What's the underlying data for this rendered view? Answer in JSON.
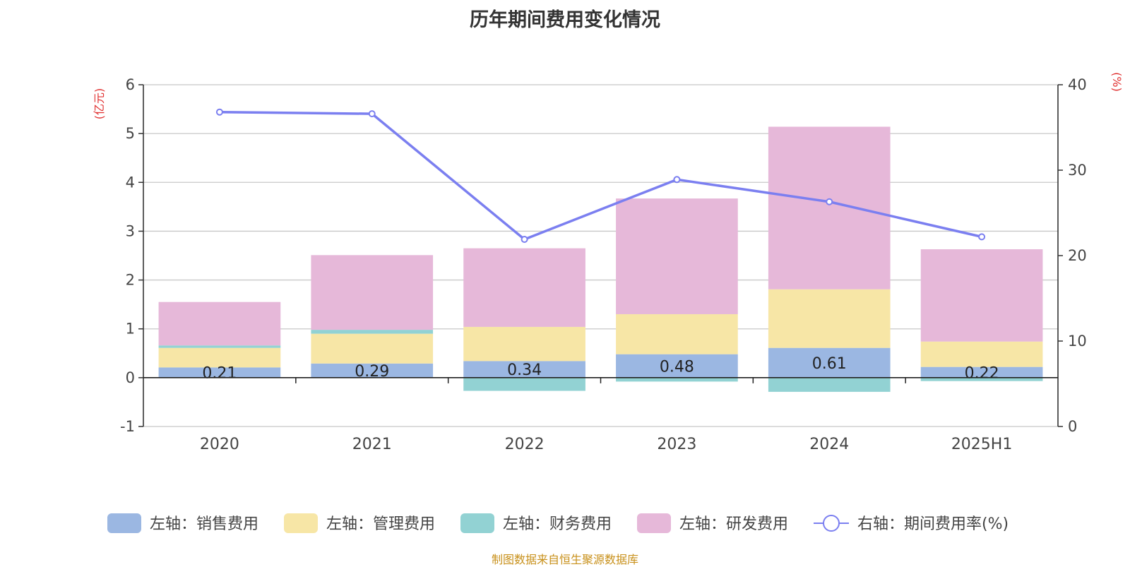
{
  "title": "历年期间费用变化情况",
  "source": "制图数据来自恒生聚源数据库",
  "left_unit": "(亿元)",
  "right_unit": "(%)",
  "colors": {
    "sales": "#9bb7e2",
    "admin": "#f7e6a6",
    "finance": "#92d2d3",
    "rd": "#e6b8d9",
    "rate": "#7b7ff0"
  },
  "chart_data": {
    "type": "bar",
    "stacked": true,
    "categories": [
      "2020",
      "2021",
      "2022",
      "2023",
      "2024",
      "2025H1"
    ],
    "y_left": {
      "label": "(亿元)",
      "ylim": [
        -1,
        6
      ],
      "ticks": [
        -1,
        0,
        1,
        2,
        3,
        4,
        5,
        6
      ]
    },
    "y_right": {
      "label": "(%)",
      "ylim": [
        0,
        40
      ],
      "ticks": [
        0,
        10,
        20,
        30,
        40
      ]
    },
    "grid": true,
    "legend_position": "bottom",
    "series": [
      {
        "name": "左轴：销售费用",
        "key": "sales",
        "axis": "left",
        "values": [
          0.21,
          0.29,
          0.34,
          0.48,
          0.61,
          0.22
        ],
        "data_labels": [
          "0.21",
          "0.29",
          "0.34",
          "0.48",
          "0.61",
          "0.22"
        ]
      },
      {
        "name": "左轴：管理费用",
        "key": "admin",
        "axis": "left",
        "values": [
          0.4,
          0.61,
          0.7,
          0.82,
          1.2,
          0.52
        ]
      },
      {
        "name": "左轴：财务费用",
        "key": "finance",
        "axis": "left",
        "values": [
          0.05,
          0.08,
          -0.27,
          -0.08,
          -0.29,
          -0.07
        ]
      },
      {
        "name": "左轴：研发费用",
        "key": "rd",
        "axis": "left",
        "values": [
          0.89,
          1.53,
          1.61,
          2.37,
          3.33,
          1.89
        ]
      },
      {
        "name": "右轴：期间费用率(%)",
        "key": "rate",
        "axis": "right",
        "type": "line",
        "values": [
          36.8,
          36.6,
          21.9,
          28.9,
          26.3,
          22.2
        ]
      }
    ]
  }
}
